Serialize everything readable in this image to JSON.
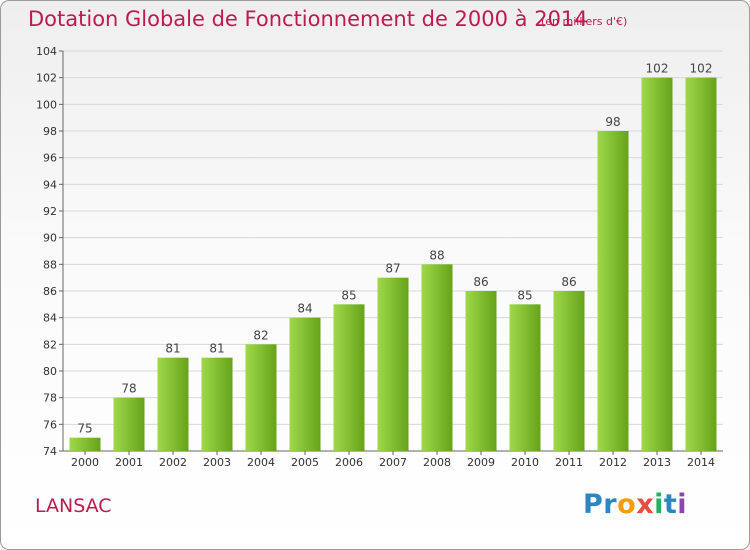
{
  "title": "Dotation Globale de Fonctionnement de 2000 à 2014",
  "unit_note": "(en milliers d'€)",
  "commune": "LANSAC",
  "logo": {
    "text": "Proxiti",
    "letters": [
      {
        "ch": "P",
        "color": "#2e86c1"
      },
      {
        "ch": "r",
        "color": "#2e86c1"
      },
      {
        "ch": "o",
        "color": "#f39c12"
      },
      {
        "ch": "x",
        "color": "#e74c3c"
      },
      {
        "ch": "i",
        "color": "#27ae60"
      },
      {
        "ch": "t",
        "color": "#2e86c1"
      },
      {
        "ch": "i",
        "color": "#8e44ad"
      }
    ]
  },
  "colors": {
    "title": "#c0194f",
    "bar_light": "#9fd84a",
    "bar_dark": "#66a31a",
    "grid": "#d8d8d8"
  },
  "chart_data": {
    "type": "bar",
    "categories": [
      "2000",
      "2001",
      "2002",
      "2003",
      "2004",
      "2005",
      "2006",
      "2007",
      "2008",
      "2009",
      "2010",
      "2011",
      "2012",
      "2013",
      "2014"
    ],
    "values": [
      75,
      78,
      81,
      81,
      82,
      84,
      85,
      87,
      88,
      86,
      85,
      86,
      98,
      102,
      102
    ],
    "ylim": [
      74,
      104
    ],
    "yticks": [
      74,
      76,
      78,
      80,
      82,
      84,
      86,
      88,
      90,
      92,
      94,
      96,
      98,
      100,
      102,
      104
    ],
    "grid": true,
    "xlabel": "",
    "ylabel": ""
  }
}
